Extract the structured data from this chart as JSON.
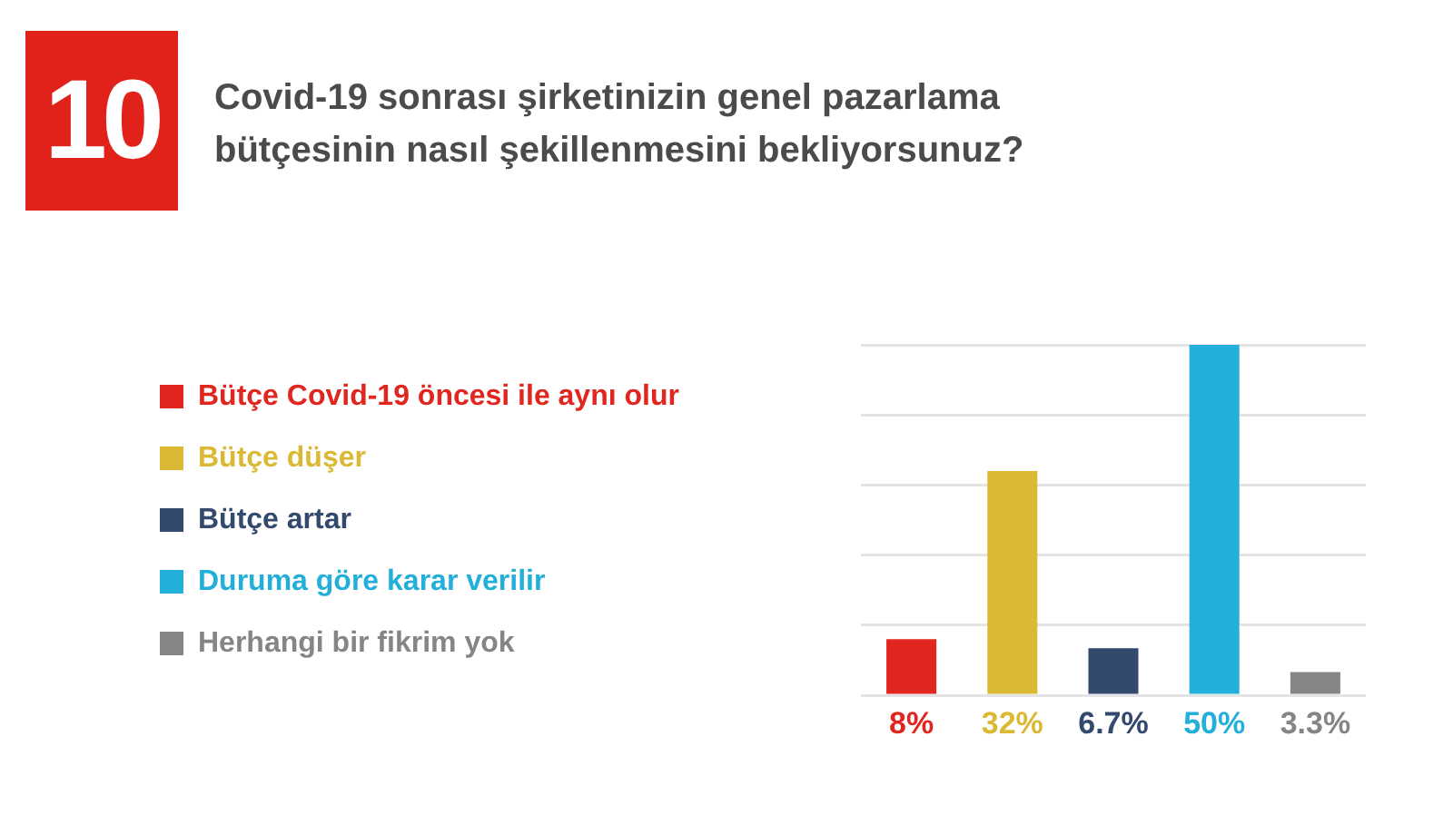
{
  "chart_data": {
    "type": "bar",
    "title": "Covid-19 sonrası şirketinizin genel pazarlama bütçesinin nasıl şekillenmesini bekliyorsunuz?",
    "annotations": [
      "10"
    ],
    "categories": [
      null,
      null,
      null,
      null,
      null
    ],
    "stacked": true,
    "series": [
      {
        "name": "Bütçe Covid-19 öncesi ile aynı olur",
        "color": "#e0261f",
        "values": [
          8,
          null,
          null,
          null,
          null
        ],
        "value_labels": [
          "8%",
          null,
          null,
          null,
          null
        ]
      },
      {
        "name": "Bütçe düşer",
        "color": "#dbb935",
        "values": [
          null,
          32,
          null,
          null,
          null
        ],
        "value_labels": [
          null,
          "32%",
          null,
          null,
          null
        ]
      },
      {
        "name": "Bütçe artar",
        "color": "#34496e",
        "values": [
          null,
          null,
          6.7,
          null,
          null
        ],
        "value_labels": [
          null,
          null,
          "6.7%",
          null,
          null
        ]
      },
      {
        "name": "Duruma göre karar verilir",
        "color": "#22b0db",
        "values": [
          null,
          null,
          null,
          50,
          null
        ],
        "value_labels": [
          null,
          null,
          null,
          "50%",
          null
        ]
      },
      {
        "name": "Herhangi bir fikrim yok",
        "color": "#858585",
        "values": [
          null,
          null,
          null,
          null,
          3.3
        ],
        "value_labels": [
          null,
          null,
          null,
          null,
          "3.3%"
        ]
      }
    ],
    "ylim": [
      0,
      50
    ],
    "yticks": [
      {
        "value": 0,
        "label": null
      },
      {
        "value": 10,
        "label": null
      },
      {
        "value": 20,
        "label": null
      },
      {
        "value": 30,
        "label": null
      },
      {
        "value": 40,
        "label": null
      },
      {
        "value": 50,
        "label": null
      }
    ],
    "grid": "y",
    "legend": "left",
    "tick_labels": false
  }
}
